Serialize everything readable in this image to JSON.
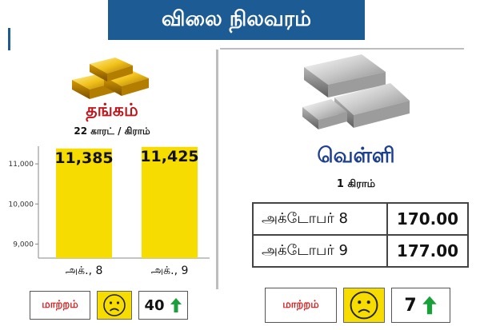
{
  "header": {
    "title": "விலை நிலவரம்"
  },
  "gold": {
    "title": "தங்கம்",
    "unit": "22 காரட் / கிராம்",
    "change_label": "மாற்றம்",
    "change_value": "40",
    "change_direction": "up"
  },
  "silver": {
    "title": "வெள்ளி",
    "unit": "1 கிராம்",
    "rows": [
      {
        "date": "அக்டோபர் 8",
        "price": "170.00"
      },
      {
        "date": "அக்டோபர் 9",
        "price": "177.00"
      }
    ],
    "change_label": "மாற்றம்",
    "change_value": "7",
    "change_direction": "up"
  },
  "colors": {
    "header_bg": "#1c5b94",
    "bar": "#f7dc00",
    "gold_title": "#c0141b",
    "silver_title": "#1c3f8f",
    "arrow": "#1aa03a"
  },
  "icons": {
    "gold": "gold-bars-icon",
    "silver": "silver-bars-icon",
    "mood": "sad-face-icon",
    "trend": "up-arrow-icon"
  },
  "chart_data": {
    "type": "bar",
    "categories": [
      "அக்., 8",
      "அக்., 9"
    ],
    "values": [
      11385,
      11425
    ],
    "value_labels": [
      "11,385",
      "11,425"
    ],
    "ylim": [
      8650,
      11600
    ],
    "yticks": [
      9000,
      10000,
      11000
    ],
    "ytick_labels": [
      "9,000",
      "10,000",
      "11,000"
    ],
    "grid": false
  }
}
